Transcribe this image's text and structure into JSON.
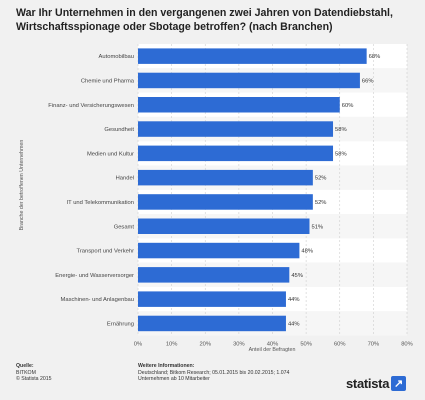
{
  "title": "War Ihr Unternehmen in den vergangenen zwei Jahren von Datendiebstahl, Wirtschaftsspionage oder Sbotage betroffen? (nach Branchen)",
  "chart_data": {
    "type": "bar",
    "orientation": "horizontal",
    "categories": [
      "Automobilbau",
      "Chemie und Pharma",
      "Finanz- und Versicherungswesen",
      "Gesundheit",
      "Medien und Kultur",
      "Handel",
      "IT und Telekommunikation",
      "Gesamt",
      "Transport und Verkehr",
      "Energie- und Wasserversorger",
      "Maschinen- und Anlagenbau",
      "Ernährung"
    ],
    "values": [
      68,
      66,
      60,
      58,
      58,
      52,
      52,
      51,
      48,
      45,
      44,
      44
    ],
    "value_labels": [
      "68%",
      "66%",
      "60%",
      "58%",
      "58%",
      "52%",
      "52%",
      "51%",
      "48%",
      "45%",
      "44%",
      "44%"
    ],
    "xlim": [
      0,
      80
    ],
    "xticks": [
      "0%",
      "10%",
      "20%",
      "30%",
      "40%",
      "50%",
      "60%",
      "70%",
      "80%"
    ],
    "xlabel": "Anteil der Befragten",
    "ylabel": "Branche der betroffenen Unternehmen",
    "bar_color": "#2d6bd4",
    "grid": true
  },
  "footer": {
    "source_heading": "Quelle:",
    "source_lines": [
      "BITKOM",
      "© Statista 2015"
    ],
    "info_heading": "Weitere Informationen:",
    "info_lines": [
      "Deutschland; Bitkom Research; 05.01.2015 bis 20.02.2015; 1.074",
      "Unternehmen ab 10 Mitarbeiter"
    ]
  },
  "logo": {
    "text": "statista",
    "mark": "↗"
  }
}
